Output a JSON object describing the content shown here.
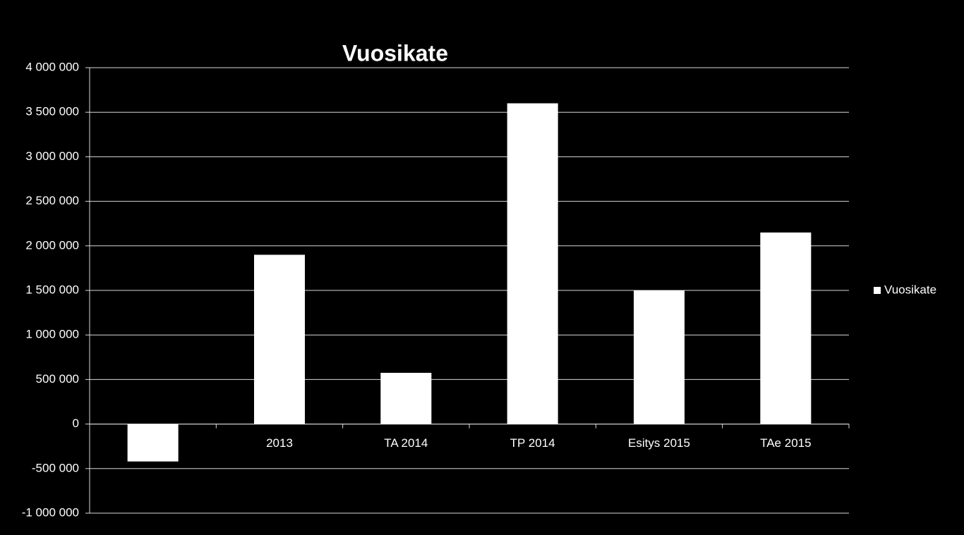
{
  "chart_data": {
    "type": "bar",
    "title": "Vuosikate",
    "categories": [
      null,
      "2013",
      "TA 2014",
      "TP 2014",
      "Esitys 2015",
      "TAe 2015"
    ],
    "series": [
      {
        "name": "Vuosikate",
        "color": "#ffffff",
        "values": [
          -420000,
          1900000,
          575000,
          3600000,
          1500000,
          2150000
        ]
      }
    ],
    "ylim": [
      -1000000,
      4000000
    ],
    "yticks": [
      {
        "value": -1000000,
        "label": "-1 000 000"
      },
      {
        "value": -500000,
        "label": "-500 000"
      },
      0,
      {
        "value": 500000,
        "label": "500 000"
      },
      {
        "value": 1000000,
        "label": "1 000 000"
      },
      {
        "value": 1500000,
        "label": "1 500 000"
      },
      {
        "value": 2000000,
        "label": "2 000 000"
      },
      {
        "value": 2500000,
        "label": "2 500 000"
      },
      {
        "value": 3000000,
        "label": "3 000 000"
      },
      {
        "value": 3500000,
        "label": "3 500 000"
      },
      {
        "value": 4000000,
        "label": "4 000 000"
      }
    ],
    "grid": true,
    "legend": "right"
  }
}
